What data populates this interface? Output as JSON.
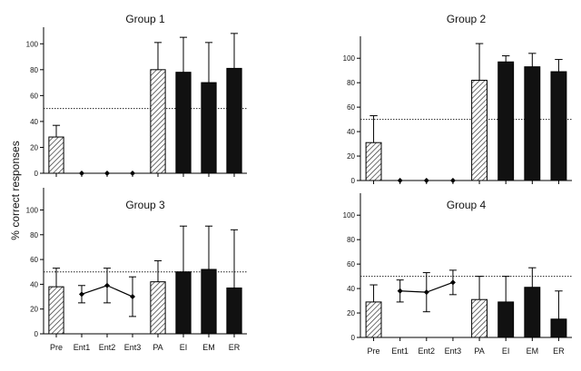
{
  "figure": {
    "ylabel": "% correct responses"
  },
  "chart_data": [
    {
      "type": "bar",
      "title": "Group 1",
      "categories": [
        "Pre",
        "Ent1",
        "Ent2",
        "Ent3",
        "PA",
        "EI",
        "EM",
        "ER"
      ],
      "ylim": [
        0,
        110
      ],
      "yticks": [
        0,
        20,
        40,
        60,
        80,
        100
      ],
      "reference_line": 50,
      "show_xticklabels": false,
      "bars": [
        {
          "category": "Pre",
          "value": 28,
          "error": 9,
          "style": "hatched"
        },
        {
          "category": "PA",
          "value": 80,
          "error": 21,
          "style": "hatched"
        },
        {
          "category": "EI",
          "value": 78,
          "error": 27,
          "style": "solid"
        },
        {
          "category": "EM",
          "value": 70,
          "error": 31,
          "style": "solid"
        },
        {
          "category": "ER",
          "value": 81,
          "error": 27,
          "style": "solid"
        }
      ],
      "line_series": [
        {
          "category": "Ent1",
          "value": 0,
          "error": 0
        },
        {
          "category": "Ent2",
          "value": 0,
          "error": 0
        },
        {
          "category": "Ent3",
          "value": 0,
          "error": 0
        }
      ]
    },
    {
      "type": "bar",
      "title": "Group 2",
      "categories": [
        "Pre",
        "Ent1",
        "Ent2",
        "Ent3",
        "PA",
        "EI",
        "EM",
        "ER"
      ],
      "ylim": [
        0,
        115
      ],
      "yticks": [
        0,
        20,
        40,
        60,
        80,
        100
      ],
      "reference_line": 50,
      "show_xticklabels": false,
      "bars": [
        {
          "category": "Pre",
          "value": 31,
          "error": 22,
          "style": "hatched"
        },
        {
          "category": "PA",
          "value": 82,
          "error": 30,
          "style": "hatched"
        },
        {
          "category": "EI",
          "value": 97,
          "error": 5,
          "style": "solid"
        },
        {
          "category": "EM",
          "value": 93,
          "error": 11,
          "style": "solid"
        },
        {
          "category": "ER",
          "value": 89,
          "error": 10,
          "style": "solid"
        }
      ],
      "line_series": [
        {
          "category": "Ent1",
          "value": 0,
          "error": 0
        },
        {
          "category": "Ent2",
          "value": 0,
          "error": 0
        },
        {
          "category": "Ent3",
          "value": 0,
          "error": 0
        }
      ]
    },
    {
      "type": "bar",
      "title": "Group 3",
      "categories": [
        "Pre",
        "Ent1",
        "Ent2",
        "Ent3",
        "PA",
        "EI",
        "EM",
        "ER"
      ],
      "ylim": [
        0,
        115
      ],
      "yticks": [
        0,
        20,
        40,
        60,
        80,
        100
      ],
      "reference_line": 50,
      "show_xticklabels": true,
      "bars": [
        {
          "category": "Pre",
          "value": 38,
          "error": 15,
          "style": "hatched"
        },
        {
          "category": "PA",
          "value": 42,
          "error": 17,
          "style": "hatched"
        },
        {
          "category": "EI",
          "value": 50,
          "error": 37,
          "style": "solid"
        },
        {
          "category": "EM",
          "value": 52,
          "error": 35,
          "style": "solid"
        },
        {
          "category": "ER",
          "value": 37,
          "error": 47,
          "style": "solid"
        }
      ],
      "line_series": [
        {
          "category": "Ent1",
          "value": 32,
          "error": 7
        },
        {
          "category": "Ent2",
          "value": 39,
          "error": 14
        },
        {
          "category": "Ent3",
          "value": 30,
          "error": 16
        }
      ]
    },
    {
      "type": "bar",
      "title": "Group 4",
      "categories": [
        "Pre",
        "Ent1",
        "Ent2",
        "Ent3",
        "PA",
        "EI",
        "EM",
        "ER"
      ],
      "ylim": [
        0,
        115
      ],
      "yticks": [
        0,
        20,
        40,
        60,
        80,
        100
      ],
      "reference_line": 50,
      "show_xticklabels": true,
      "bars": [
        {
          "category": "Pre",
          "value": 29,
          "error": 14,
          "style": "hatched"
        },
        {
          "category": "PA",
          "value": 31,
          "error": 19,
          "style": "hatched"
        },
        {
          "category": "EI",
          "value": 29,
          "error": 21,
          "style": "solid"
        },
        {
          "category": "EM",
          "value": 41,
          "error": 16,
          "style": "solid"
        },
        {
          "category": "ER",
          "value": 15,
          "error": 23,
          "style": "solid"
        }
      ],
      "line_series": [
        {
          "category": "Ent1",
          "value": 38,
          "error": 9
        },
        {
          "category": "Ent2",
          "value": 37,
          "error": 16
        },
        {
          "category": "Ent3",
          "value": 45,
          "error": 10
        }
      ]
    }
  ]
}
